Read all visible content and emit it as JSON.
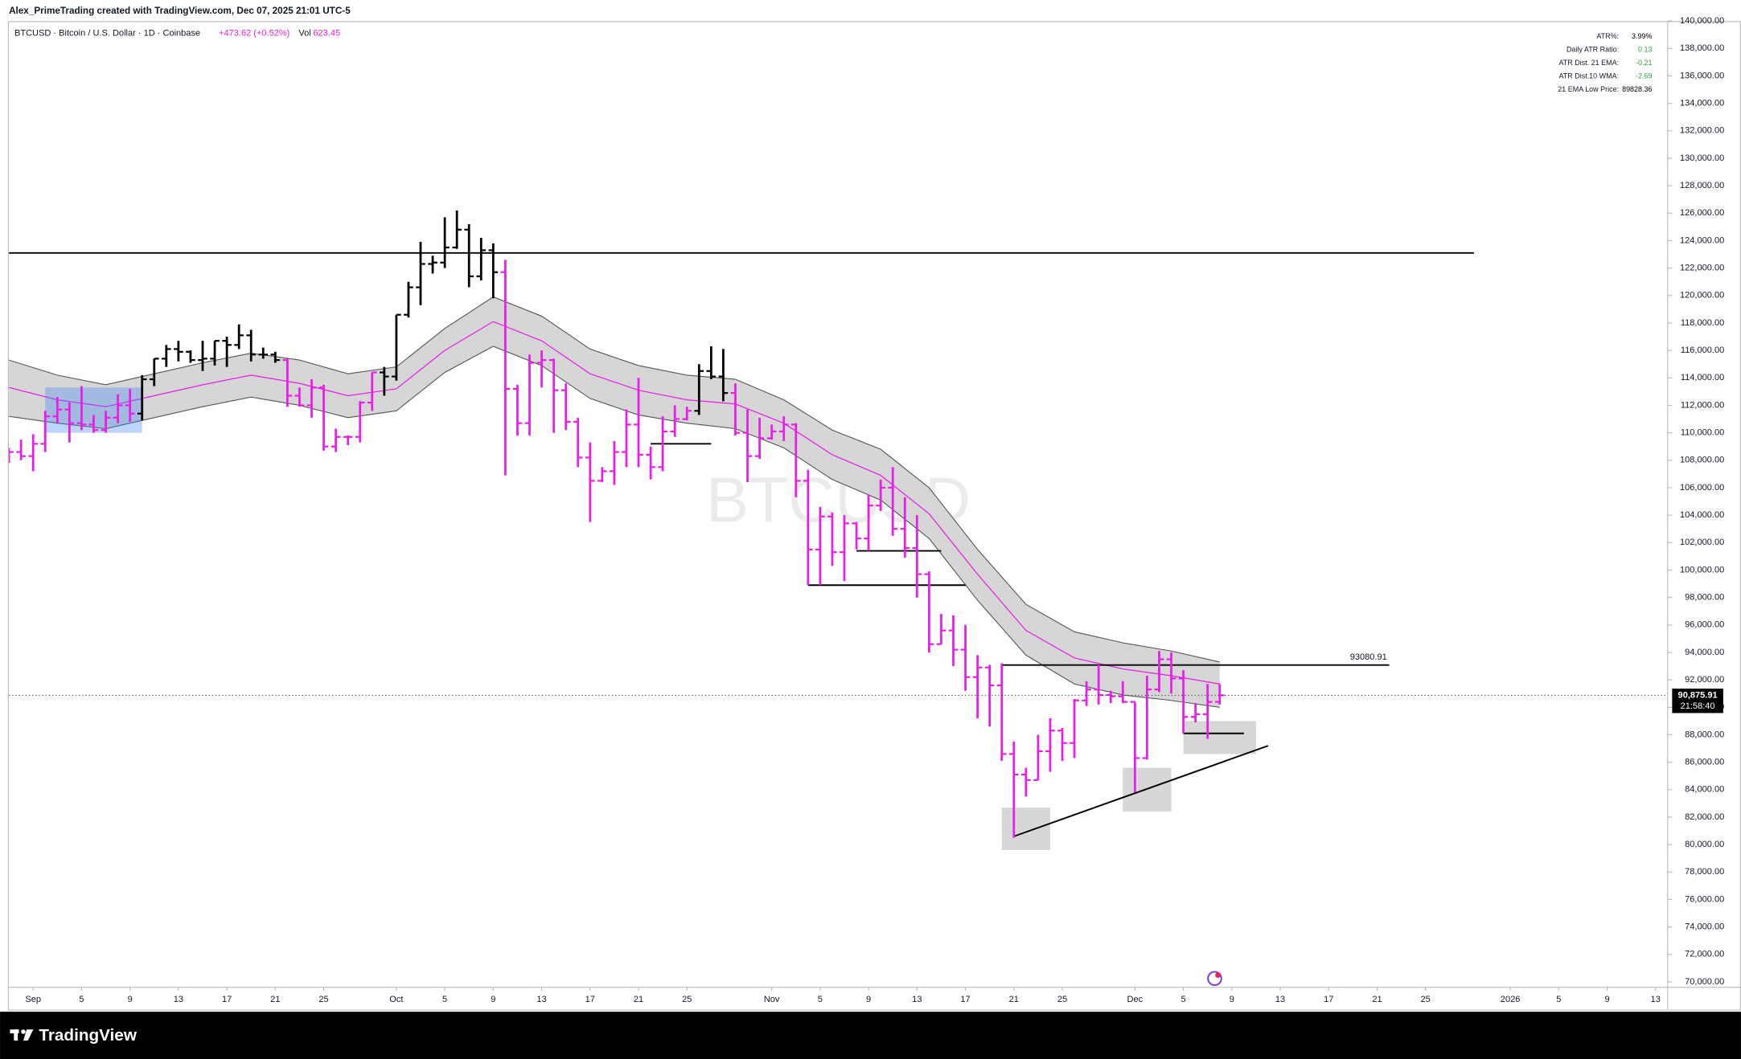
{
  "chart_data": {
    "type": "ohlc",
    "caption": "Alex_PrimeTrading created with TradingView.com, Dec 07, 2025 21:01 UTC-5",
    "symbol": "BTCUSD · Bitcoin / U.S. Dollar · 1D · Coinbase",
    "change": "+473.62 (+0.52%)",
    "volume_label": "Vol",
    "volume": "623.45",
    "watermark": "BTCUSD",
    "footer": "TradingView",
    "indicator_table": [
      {
        "label": "ATR%:",
        "value": "3.99%",
        "color": "#000000"
      },
      {
        "label": "Daily ATR Ratio:",
        "value": "0.13",
        "color": "#2e9e3e"
      },
      {
        "label": "ATR Dist. 21 EMA:",
        "value": "-0.21",
        "color": "#2e9e3e"
      },
      {
        "label": "ATR Dist.10 WMA:",
        "value": "-2.69",
        "color": "#2e9e3e"
      },
      {
        "label": "21 EMA Low Price:",
        "value": "89828.36",
        "color": "#000000"
      }
    ],
    "last_price": {
      "value": 90875.91,
      "label": "90,875.91",
      "countdown": "21:58:40"
    },
    "xlim": [
      "2025-08-30",
      "2026-01-14"
    ],
    "ylim": [
      69600,
      140560
    ],
    "grid": false,
    "xticks": [
      {
        "value": "2025-09-01",
        "label": "Sep"
      },
      {
        "value": "2025-09-05",
        "label": "5"
      },
      {
        "value": "2025-09-09",
        "label": "9"
      },
      {
        "value": "2025-09-13",
        "label": "13"
      },
      {
        "value": "2025-09-17",
        "label": "17"
      },
      {
        "value": "2025-09-21",
        "label": "21"
      },
      {
        "value": "2025-09-25",
        "label": "25"
      },
      {
        "value": "2025-10-01",
        "label": "Oct"
      },
      {
        "value": "2025-10-05",
        "label": "5"
      },
      {
        "value": "2025-10-09",
        "label": "9"
      },
      {
        "value": "2025-10-13",
        "label": "13"
      },
      {
        "value": "2025-10-17",
        "label": "17"
      },
      {
        "value": "2025-10-21",
        "label": "21"
      },
      {
        "value": "2025-10-25",
        "label": "25"
      },
      {
        "value": "2025-11-01",
        "label": "Nov"
      },
      {
        "value": "2025-11-05",
        "label": "5"
      },
      {
        "value": "2025-11-09",
        "label": "9"
      },
      {
        "value": "2025-11-13",
        "label": "13"
      },
      {
        "value": "2025-11-17",
        "label": "17"
      },
      {
        "value": "2025-11-21",
        "label": "21"
      },
      {
        "value": "2025-11-25",
        "label": "25"
      },
      {
        "value": "2025-12-01",
        "label": "Dec"
      },
      {
        "value": "2025-12-05",
        "label": "5"
      },
      {
        "value": "2025-12-09",
        "label": "9"
      },
      {
        "value": "2025-12-13",
        "label": "13"
      },
      {
        "value": "2025-12-17",
        "label": "17"
      },
      {
        "value": "2025-12-21",
        "label": "21"
      },
      {
        "value": "2025-12-25",
        "label": "25"
      },
      {
        "value": "2026-01-01",
        "label": "2026"
      },
      {
        "value": "2026-01-05",
        "label": "5"
      },
      {
        "value": "2026-01-09",
        "label": "9"
      },
      {
        "value": "2026-01-13",
        "label": "13"
      }
    ],
    "yticks": [
      {
        "value": 70000,
        "label": "70,000.00"
      },
      {
        "value": 72000,
        "label": "72,000.00"
      },
      {
        "value": 74000,
        "label": "74,000.00"
      },
      {
        "value": 76000,
        "label": "76,000.00"
      },
      {
        "value": 78000,
        "label": "78,000.00"
      },
      {
        "value": 80000,
        "label": "80,000.00"
      },
      {
        "value": 82000,
        "label": "82,000.00"
      },
      {
        "value": 84000,
        "label": "84,000.00"
      },
      {
        "value": 86000,
        "label": "86,000.00"
      },
      {
        "value": 88000,
        "label": "88,000.00"
      },
      {
        "value": 90000,
        "label": "90,000.00"
      },
      {
        "value": 92000,
        "label": "92,000.00"
      },
      {
        "value": 94000,
        "label": "94,000.00"
      },
      {
        "value": 96000,
        "label": "96,000.00"
      },
      {
        "value": 98000,
        "label": "98,000.00"
      },
      {
        "value": 100000,
        "label": "100,000.00"
      },
      {
        "value": 102000,
        "label": "102,000.00"
      },
      {
        "value": 104000,
        "label": "104,000.00"
      },
      {
        "value": 106000,
        "label": "106,000.00"
      },
      {
        "value": 108000,
        "label": "108,000.00"
      },
      {
        "value": 110000,
        "label": "110,000.00"
      },
      {
        "value": 112000,
        "label": "112,000.00"
      },
      {
        "value": 114000,
        "label": "114,000.00"
      },
      {
        "value": 116000,
        "label": "116,000.00"
      },
      {
        "value": 118000,
        "label": "118,000.00"
      },
      {
        "value": 120000,
        "label": "120,000.00"
      },
      {
        "value": 122000,
        "label": "122,000.00"
      },
      {
        "value": 124000,
        "label": "124,000.00"
      },
      {
        "value": 126000,
        "label": "126,000.00"
      },
      {
        "value": 128000,
        "label": "128,000.00"
      },
      {
        "value": 130000,
        "label": "130,000.00"
      },
      {
        "value": 132000,
        "label": "132,000.00"
      },
      {
        "value": 134000,
        "label": "134,000.00"
      },
      {
        "value": 136000,
        "label": "136,000.00"
      },
      {
        "value": 138000,
        "label": "138,000.00"
      },
      {
        "value": 140000,
        "label": "140,000.00"
      }
    ],
    "x": [
      "2025-08-30",
      "2025-08-31",
      "2025-09-01",
      "2025-09-02",
      "2025-09-03",
      "2025-09-04",
      "2025-09-05",
      "2025-09-06",
      "2025-09-07",
      "2025-09-08",
      "2025-09-09",
      "2025-09-10",
      "2025-09-11",
      "2025-09-12",
      "2025-09-13",
      "2025-09-14",
      "2025-09-15",
      "2025-09-16",
      "2025-09-17",
      "2025-09-18",
      "2025-09-19",
      "2025-09-20",
      "2025-09-21",
      "2025-09-22",
      "2025-09-23",
      "2025-09-24",
      "2025-09-25",
      "2025-09-26",
      "2025-09-27",
      "2025-09-28",
      "2025-09-29",
      "2025-09-30",
      "2025-10-01",
      "2025-10-02",
      "2025-10-03",
      "2025-10-04",
      "2025-10-05",
      "2025-10-06",
      "2025-10-07",
      "2025-10-08",
      "2025-10-09",
      "2025-10-10",
      "2025-10-11",
      "2025-10-12",
      "2025-10-13",
      "2025-10-14",
      "2025-10-15",
      "2025-10-16",
      "2025-10-17",
      "2025-10-18",
      "2025-10-19",
      "2025-10-20",
      "2025-10-21",
      "2025-10-22",
      "2025-10-23",
      "2025-10-24",
      "2025-10-25",
      "2025-10-26",
      "2025-10-27",
      "2025-10-28",
      "2025-10-29",
      "2025-10-30",
      "2025-10-31",
      "2025-11-01",
      "2025-11-02",
      "2025-11-03",
      "2025-11-04",
      "2025-11-05",
      "2025-11-06",
      "2025-11-07",
      "2025-11-08",
      "2025-11-09",
      "2025-11-10",
      "2025-11-11",
      "2025-11-12",
      "2025-11-13",
      "2025-11-14",
      "2025-11-15",
      "2025-11-16",
      "2025-11-17",
      "2025-11-18",
      "2025-11-19",
      "2025-11-20",
      "2025-11-21",
      "2025-11-22",
      "2025-11-23",
      "2025-11-24",
      "2025-11-25",
      "2025-11-26",
      "2025-11-27",
      "2025-11-28",
      "2025-11-29",
      "2025-11-30",
      "2025-12-01",
      "2025-12-02",
      "2025-12-03",
      "2025-12-04",
      "2025-12-05",
      "2025-12-06",
      "2025-12-07",
      "2025-12-08"
    ],
    "open": [
      108300,
      108600,
      108300,
      109200,
      111200,
      111700,
      110700,
      110600,
      110200,
      111100,
      112000,
      111400,
      113900,
      115400,
      116100,
      115900,
      115300,
      115400,
      116700,
      116400,
      117100,
      115700,
      115700,
      115300,
      112700,
      112000,
      113300,
      109000,
      109700,
      109700,
      112200,
      114400,
      114100,
      118600,
      120600,
      122300,
      122400,
      123500,
      124800,
      121400,
      123300,
      121700,
      113200,
      110700,
      115100,
      115300,
      113100,
      110800,
      108200,
      106500,
      107200,
      108600,
      110600,
      108400,
      107500,
      110100,
      111000,
      111600,
      114500,
      114100,
      112900,
      110000,
      108300,
      109600,
      110100,
      110600,
      106500,
      101500,
      103900,
      101300,
      103400,
      102300,
      104700,
      106000,
      103000,
      101600,
      99700,
      94600,
      95600,
      94200,
      92200,
      92900,
      91600,
      86600,
      85100,
      84700,
      86800,
      88300,
      87400,
      90500,
      91300,
      90900,
      90800,
      90400,
      86300,
      91300,
      93500,
      92100,
      89300,
      89500,
      90400
    ],
    "high": [
      108900,
      109500,
      109900,
      111600,
      112600,
      112200,
      113400,
      111300,
      111600,
      112800,
      113200,
      114200,
      115400,
      116400,
      116700,
      116000,
      116700,
      116700,
      117000,
      117900,
      117500,
      116200,
      115900,
      115400,
      113300,
      113900,
      113500,
      110300,
      109800,
      112300,
      114400,
      114800,
      118600,
      121000,
      123900,
      122900,
      125700,
      126200,
      125200,
      124200,
      123800,
      122600,
      113500,
      115700,
      116000,
      115400,
      113600,
      111100,
      109300,
      107500,
      109400,
      111700,
      114000,
      109000,
      111200,
      112000,
      111900,
      115000,
      116300,
      116100,
      113600,
      111700,
      111100,
      110600,
      111200,
      110700,
      107300,
      104600,
      104200,
      104000,
      103500,
      105500,
      106600,
      107500,
      105300,
      104000,
      99900,
      96800,
      96700,
      96000,
      93800,
      93100,
      93200,
      87500,
      85600,
      88000,
      89200,
      88500,
      90600,
      91900,
      93100,
      91200,
      91900,
      90400,
      92300,
      94100,
      94000,
      92700,
      90300,
      91700,
      91700
    ],
    "low": [
      107800,
      108000,
      107200,
      108600,
      110700,
      109300,
      110200,
      110000,
      110000,
      110700,
      110800,
      110900,
      113400,
      114800,
      115200,
      115100,
      114500,
      114900,
      114800,
      116100,
      115200,
      115400,
      115100,
      111900,
      111900,
      111100,
      108700,
      108600,
      109100,
      109300,
      111600,
      112700,
      113800,
      118400,
      119300,
      121600,
      122000,
      123400,
      120600,
      121100,
      119800,
      106900,
      109800,
      109800,
      113300,
      110000,
      110200,
      107500,
      103500,
      106400,
      106200,
      107500,
      107500,
      106600,
      107200,
      109700,
      110900,
      111300,
      113900,
      112300,
      109800,
      106400,
      108100,
      109500,
      109400,
      105300,
      98900,
      98900,
      100300,
      99200,
      101500,
      101400,
      104300,
      102500,
      100900,
      98000,
      94000,
      94600,
      93000,
      91200,
      89200,
      88600,
      86100,
      80500,
      83500,
      84700,
      85300,
      86100,
      86300,
      90100,
      90200,
      90300,
      90300,
      83800,
      86200,
      91100,
      91000,
      88100,
      88900,
      87700,
      90200
    ],
    "close": [
      108600,
      108300,
      109200,
      111200,
      111700,
      110700,
      110600,
      110200,
      111100,
      112000,
      111400,
      113900,
      115400,
      116100,
      115900,
      115300,
      115400,
      116700,
      116400,
      117100,
      115700,
      115700,
      115300,
      112700,
      112000,
      113300,
      109000,
      109700,
      109700,
      112200,
      114400,
      114100,
      118600,
      120600,
      122300,
      122400,
      123500,
      124800,
      121400,
      123300,
      121700,
      113200,
      110700,
      115100,
      115300,
      113100,
      110800,
      108200,
      106500,
      107200,
      108600,
      110600,
      108400,
      107500,
      110100,
      111000,
      111600,
      114500,
      114100,
      112900,
      110000,
      108300,
      109600,
      110100,
      110600,
      106500,
      101500,
      103900,
      101300,
      103400,
      102300,
      104700,
      106000,
      103000,
      101600,
      99700,
      94600,
      95600,
      94200,
      92200,
      92900,
      91600,
      86600,
      85100,
      84700,
      86800,
      88300,
      87400,
      90500,
      91300,
      90900,
      90800,
      90400,
      86300,
      91300,
      93500,
      92100,
      89300,
      89500,
      90400,
      90875.91
    ],
    "bar_colors": [
      "#e91ee8",
      "#e91ee8",
      "#e91ee8",
      "#e91ee8",
      "#e91ee8",
      "#e91ee8",
      "#e91ee8",
      "#e91ee8",
      "#e91ee8",
      "#e91ee8",
      "#e91ee8",
      "#000000",
      "#000000",
      "#000000",
      "#000000",
      "#000000",
      "#000000",
      "#000000",
      "#000000",
      "#000000",
      "#000000",
      "#000000",
      "#000000",
      "#e91ee8",
      "#e91ee8",
      "#e91ee8",
      "#e91ee8",
      "#e91ee8",
      "#e91ee8",
      "#e91ee8",
      "#e91ee8",
      "#000000",
      "#000000",
      "#000000",
      "#000000",
      "#000000",
      "#000000",
      "#000000",
      "#000000",
      "#000000",
      "#000000",
      "#e91ee8",
      "#e91ee8",
      "#e91ee8",
      "#e91ee8",
      "#e91ee8",
      "#e91ee8",
      "#e91ee8",
      "#e91ee8",
      "#e91ee8",
      "#e91ee8",
      "#e91ee8",
      "#e91ee8",
      "#e91ee8",
      "#e91ee8",
      "#e91ee8",
      "#e91ee8",
      "#000000",
      "#000000",
      "#000000",
      "#e91ee8",
      "#e91ee8",
      "#e91ee8",
      "#e91ee8",
      "#e91ee8",
      "#e91ee8",
      "#e91ee8",
      "#e91ee8",
      "#e91ee8",
      "#e91ee8",
      "#e91ee8",
      "#e91ee8",
      "#e91ee8",
      "#e91ee8",
      "#e91ee8",
      "#e91ee8",
      "#e91ee8",
      "#e91ee8",
      "#e91ee8",
      "#e91ee8",
      "#e91ee8",
      "#e91ee8",
      "#e91ee8",
      "#e91ee8",
      "#e91ee8",
      "#e91ee8",
      "#e91ee8",
      "#e91ee8",
      "#e91ee8",
      "#e91ee8",
      "#e91ee8",
      "#e91ee8",
      "#e91ee8",
      "#e91ee8",
      "#e91ee8",
      "#e91ee8",
      "#e91ee8",
      "#e91ee8",
      "#e91ee8",
      "#e91ee8",
      "#e91ee8"
    ],
    "band": {
      "fill": "#d6d6d6",
      "edge_color": "#555555",
      "mid_color": "#e91ee8",
      "x": [
        "2025-08-30",
        "2025-09-03",
        "2025-09-07",
        "2025-09-11",
        "2025-09-15",
        "2025-09-19",
        "2025-09-23",
        "2025-09-27",
        "2025-10-01",
        "2025-10-05",
        "2025-10-09",
        "2025-10-13",
        "2025-10-17",
        "2025-10-21",
        "2025-10-25",
        "2025-10-29",
        "2025-11-02",
        "2025-11-06",
        "2025-11-10",
        "2025-11-14",
        "2025-11-18",
        "2025-11-22",
        "2025-11-26",
        "2025-11-30",
        "2025-12-04",
        "2025-12-08"
      ],
      "upper": [
        115300,
        114200,
        113500,
        114300,
        115100,
        115800,
        115300,
        114300,
        114800,
        117600,
        119900,
        118500,
        116100,
        114900,
        114200,
        113900,
        112400,
        110200,
        108800,
        106000,
        101500,
        97500,
        95500,
        94700,
        94100,
        93300
      ],
      "mid": [
        113300,
        112400,
        111900,
        112700,
        113500,
        114200,
        113600,
        112700,
        113200,
        116000,
        118100,
        116700,
        114300,
        113100,
        112400,
        112100,
        110700,
        108400,
        106900,
        104100,
        99700,
        95600,
        93600,
        92800,
        92300,
        91700
      ],
      "lower": [
        111200,
        110700,
        110300,
        111100,
        111900,
        112600,
        112000,
        111100,
        111600,
        114400,
        116300,
        114900,
        112500,
        111300,
        110700,
        110300,
        108900,
        106600,
        105100,
        102300,
        97800,
        93800,
        91700,
        90900,
        90500,
        90000
      ]
    },
    "drawings": [
      {
        "kind": "box",
        "x": [
          "2025-09-02",
          "2025-09-10"
        ],
        "y": [
          110000,
          113300
        ],
        "color": "rgba(66,133,244,0.35)"
      },
      {
        "kind": "box",
        "x": [
          "2025-11-20",
          "2025-11-24"
        ],
        "y": [
          79600,
          82700
        ],
        "color": "rgba(140,140,140,0.35)"
      },
      {
        "kind": "box",
        "x": [
          "2025-11-30",
          "2025-12-04"
        ],
        "y": [
          82400,
          85600
        ],
        "color": "rgba(140,140,140,0.35)"
      },
      {
        "kind": "box",
        "x": [
          "2025-12-05",
          "2025-12-11"
        ],
        "y": [
          86600,
          89000
        ],
        "color": "rgba(140,140,140,0.35)"
      },
      {
        "kind": "line",
        "x": [
          "2025-08-30",
          "2025-12-29"
        ],
        "y": [
          123100,
          123100
        ],
        "color": "#000000"
      },
      {
        "kind": "line",
        "x": [
          "2025-11-20",
          "2025-12-22"
        ],
        "y": [
          93080.91,
          93080.91
        ],
        "color": "#000000",
        "labeled": true
      },
      {
        "kind": "line",
        "x": [
          "2025-10-22",
          "2025-10-27"
        ],
        "y": [
          109200,
          109200
        ],
        "color": "#000000"
      },
      {
        "kind": "line",
        "x": [
          "2025-11-08",
          "2025-11-15"
        ],
        "y": [
          101400,
          101400
        ],
        "color": "#000000"
      },
      {
        "kind": "line",
        "x": [
          "2025-11-04",
          "2025-11-17"
        ],
        "y": [
          98900,
          98900
        ],
        "color": "#000000"
      },
      {
        "kind": "line",
        "x": [
          "2025-12-05",
          "2025-12-10"
        ],
        "y": [
          88100,
          88100
        ],
        "color": "#000000"
      },
      {
        "kind": "line",
        "x": [
          "2025-11-21",
          "2025-12-12"
        ],
        "y": [
          80600,
          87200
        ],
        "color": "#000000"
      }
    ]
  }
}
